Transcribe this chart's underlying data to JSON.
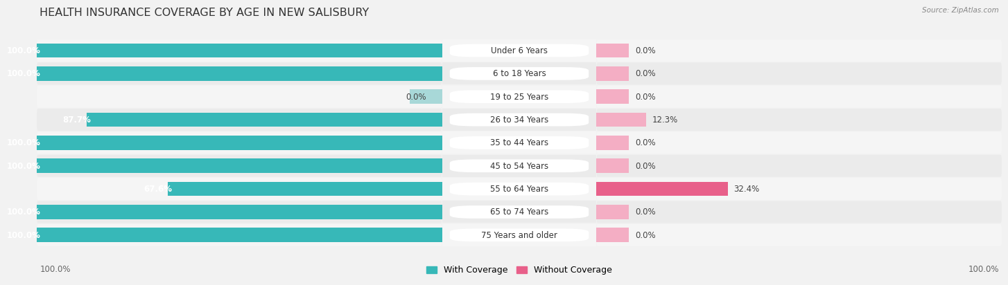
{
  "title": "HEALTH INSURANCE COVERAGE BY AGE IN NEW SALISBURY",
  "source": "Source: ZipAtlas.com",
  "categories": [
    "Under 6 Years",
    "6 to 18 Years",
    "19 to 25 Years",
    "26 to 34 Years",
    "35 to 44 Years",
    "45 to 54 Years",
    "55 to 64 Years",
    "65 to 74 Years",
    "75 Years and older"
  ],
  "with_coverage": [
    100.0,
    100.0,
    0.0,
    87.7,
    100.0,
    100.0,
    67.6,
    100.0,
    100.0
  ],
  "without_coverage": [
    0.0,
    0.0,
    0.0,
    12.3,
    0.0,
    0.0,
    32.4,
    0.0,
    0.0
  ],
  "color_with": "#37b8b8",
  "color_with_light": "#a8d8d8",
  "color_without_light": "#f4aec4",
  "color_without_dark": "#e8608a",
  "bg_color": "#f2f2f2",
  "row_bg_even": "#ebebeb",
  "row_bg_odd": "#f5f5f5",
  "bar_bg": "#dcdcdc",
  "white": "#ffffff",
  "title_fontsize": 11.5,
  "label_fontsize": 8.5,
  "cat_fontsize": 8.5,
  "x_max": 100,
  "legend_with": "With Coverage",
  "legend_without": "Without Coverage"
}
